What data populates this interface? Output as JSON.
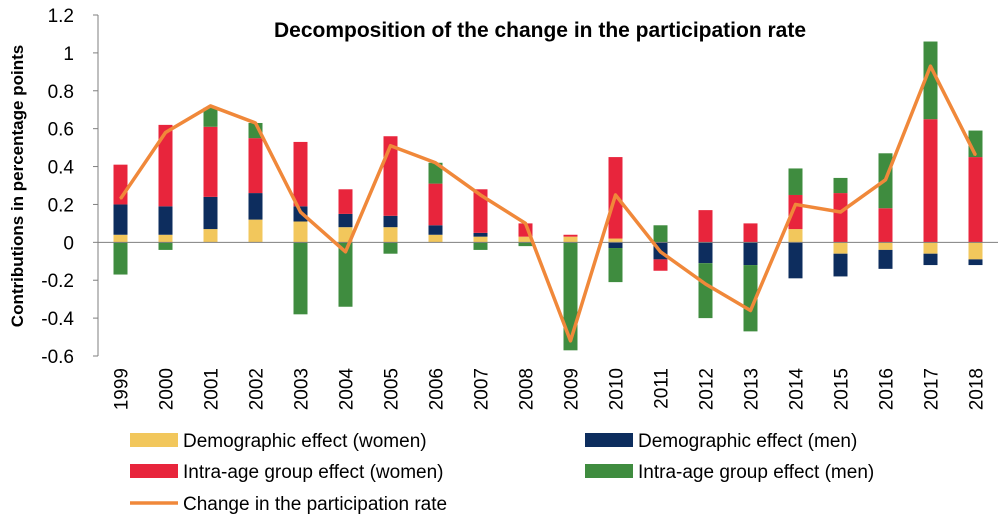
{
  "chart_data": {
    "type": "bar",
    "stacked": true,
    "title": "Decomposition of the change in the participation rate",
    "xlabel": "",
    "ylabel": "Contributions in percentage points",
    "ylim": [
      -0.6,
      1.2
    ],
    "yticks": [
      -0.6,
      -0.4,
      -0.2,
      0,
      0.2,
      0.4,
      0.6,
      0.8,
      1,
      1.2
    ],
    "ytick_labels": [
      "-0.6",
      "-0.4",
      "-0.2",
      "0",
      "0.2",
      "0.4",
      "0.6",
      "0.8",
      "1",
      "1.2"
    ],
    "categories": [
      "1999",
      "2000",
      "2001",
      "2002",
      "2003",
      "2004",
      "2005",
      "2006",
      "2007",
      "2008",
      "2009",
      "2010",
      "2011",
      "2012",
      "2013",
      "2014",
      "2015",
      "2016",
      "2017",
      "2018"
    ],
    "series": [
      {
        "name": "Demographic effect (women)",
        "kind": "bar",
        "color": "#F2C75C",
        "values": [
          0.04,
          0.04,
          0.07,
          0.12,
          0.11,
          0.08,
          0.08,
          0.04,
          0.03,
          0.03,
          0.03,
          0.02,
          0.0,
          0.0,
          0.0,
          0.07,
          -0.06,
          -0.04,
          -0.06,
          -0.09
        ]
      },
      {
        "name": "Demographic effect (men)",
        "kind": "bar",
        "color": "#0D2D5E",
        "values": [
          0.16,
          0.15,
          0.17,
          0.14,
          0.08,
          0.07,
          0.06,
          0.05,
          0.02,
          0.0,
          0.0,
          -0.03,
          -0.09,
          -0.11,
          -0.12,
          -0.19,
          -0.12,
          -0.1,
          -0.06,
          -0.03
        ]
      },
      {
        "name": "Intra-age group effect (women)",
        "kind": "bar",
        "color": "#E8253C",
        "values": [
          0.21,
          0.43,
          0.37,
          0.29,
          0.34,
          0.13,
          0.42,
          0.22,
          0.23,
          0.07,
          0.01,
          0.43,
          -0.06,
          0.17,
          0.1,
          0.18,
          0.26,
          0.18,
          0.65,
          0.45
        ]
      },
      {
        "name": "Intra-age group effect (men)",
        "kind": "bar",
        "color": "#3F8C3F",
        "values": [
          -0.17,
          -0.04,
          0.1,
          0.08,
          -0.38,
          -0.34,
          -0.06,
          0.11,
          -0.04,
          -0.02,
          -0.57,
          -0.18,
          0.09,
          -0.29,
          -0.35,
          0.14,
          0.08,
          0.29,
          0.41,
          0.14
        ]
      },
      {
        "name": "Change in the participation rate",
        "kind": "line",
        "color": "#F0883A",
        "values": [
          0.23,
          0.58,
          0.72,
          0.63,
          0.16,
          -0.05,
          0.51,
          0.42,
          0.25,
          0.1,
          -0.52,
          0.25,
          -0.05,
          -0.22,
          -0.36,
          0.2,
          0.16,
          0.33,
          0.93,
          0.46
        ]
      }
    ],
    "legend_position": "bottom",
    "grid": false
  }
}
